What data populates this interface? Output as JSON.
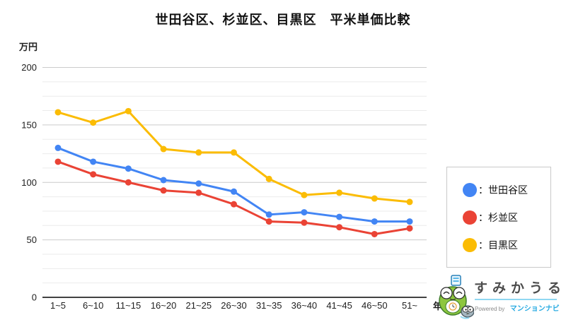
{
  "title": "世田谷区、杉並区、目黒区　平米単価比較",
  "axes": {
    "y_unit": "万円",
    "x_unit": "年"
  },
  "chart_data": {
    "type": "line",
    "title": "世田谷区、杉並区、目黒区　平米単価比較",
    "xlabel": "年",
    "ylabel": "万円",
    "categories": [
      "1~5",
      "6~10",
      "11~15",
      "16~20",
      "21~25",
      "26~30",
      "31~35",
      "36~40",
      "41~45",
      "46~50",
      "51~"
    ],
    "series": [
      {
        "name": "世田谷区",
        "color": "#4285F4",
        "values": [
          130,
          118,
          112,
          102,
          99,
          92,
          72,
          74,
          70,
          66,
          66
        ]
      },
      {
        "name": "杉並区",
        "color": "#EA4335",
        "values": [
          118,
          107,
          100,
          93,
          91,
          81,
          66,
          65,
          61,
          55,
          60
        ]
      },
      {
        "name": "目黒区",
        "color": "#FBBC04",
        "values": [
          161,
          152,
          162,
          129,
          126,
          126,
          103,
          89,
          91,
          86,
          83
        ]
      }
    ],
    "ylim": [
      0,
      200
    ],
    "yticks": [
      0,
      50,
      100,
      150,
      200
    ],
    "minor_grid_step": 12.5,
    "grid": true,
    "legend_position": "right"
  },
  "legend": {
    "items": [
      {
        "label": "：世田谷区",
        "color": "#4285F4"
      },
      {
        "label": "：杉並区",
        "color": "#EA4335"
      },
      {
        "label": "：目黒区",
        "color": "#FBBC04"
      }
    ]
  },
  "logo": {
    "brand": "すみかうる",
    "powered_by": "Powered by",
    "powered_brand": "マンションナビ"
  }
}
